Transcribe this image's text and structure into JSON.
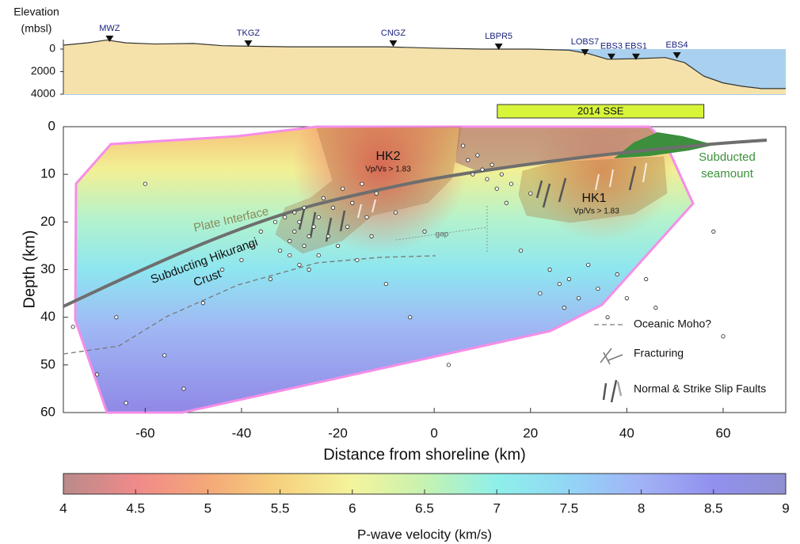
{
  "elevation_panel": {
    "axis_label": [
      "Elevation",
      "(mbsl)"
    ],
    "ylim": [
      -840,
      4000
    ],
    "yticks": [
      0,
      2000,
      4000
    ],
    "profile": {
      "x": [
        -77,
        -72,
        -68,
        -64,
        -58,
        -50,
        -44,
        -38,
        -30,
        -20,
        -10,
        0,
        10,
        20,
        28,
        32,
        36,
        42,
        48,
        52,
        56,
        60,
        64,
        68,
        73
      ],
      "elev": [
        -350,
        -550,
        -800,
        -550,
        -450,
        -500,
        -300,
        -250,
        -200,
        -200,
        -200,
        -80,
        0,
        0,
        100,
        400,
        900,
        850,
        750,
        1200,
        2400,
        3000,
        3300,
        3500,
        3500
      ]
    },
    "stations": [
      {
        "name": "MWZ",
        "x": -67.4,
        "elev": -700
      },
      {
        "name": "TKGZ",
        "x": -38.6,
        "elev": -280
      },
      {
        "name": "CNGZ",
        "x": -8.5,
        "elev": -280
      },
      {
        "name": "LBPR5",
        "x": 13.4,
        "elev": 0
      },
      {
        "name": "LOBS7",
        "x": 31.3,
        "elev": 500
      },
      {
        "name": "EBS3",
        "x": 36.8,
        "elev": 900
      },
      {
        "name": "EBS1",
        "x": 41.9,
        "elev": 900
      },
      {
        "name": "EBS4",
        "x": 50.4,
        "elev": 770
      }
    ],
    "sse": {
      "label": "2014 SSE",
      "x": [
        13.1,
        56
      ]
    }
  },
  "section": {
    "xlabel": "Distance from shoreline (km)",
    "ylabel": "Depth (km)",
    "xlim": [
      -77,
      73
    ],
    "ylim": [
      0,
      60
    ],
    "xticks": [
      -60,
      -40,
      -20,
      0,
      20,
      40,
      60
    ],
    "yticks": [
      0,
      10,
      20,
      30,
      40,
      50,
      60
    ],
    "annotations": {
      "hk2": "HK2",
      "hk2_ratio": "Vp/Vs > 1.83",
      "hk1": "HK1",
      "hk1_ratio": "Vp/Vs > 1.83",
      "seamount": [
        "Subducted",
        "seamount"
      ],
      "interface": "Plate Interface",
      "crust": [
        "Subducting Hikurangi",
        "Crust"
      ],
      "gap": "gap"
    },
    "legend": [
      "Oceanic Moho?",
      "Fracturing",
      "Normal & Strike Slip Faults"
    ],
    "earthquakes": [
      [
        -75,
        42
      ],
      [
        -70,
        52
      ],
      [
        -66,
        40
      ],
      [
        -64,
        58
      ],
      [
        -60,
        12
      ],
      [
        -56,
        48
      ],
      [
        -52,
        55
      ],
      [
        -48,
        37
      ],
      [
        -44,
        30
      ],
      [
        -40,
        28
      ],
      [
        -38,
        25
      ],
      [
        -36,
        22
      ],
      [
        -34,
        32
      ],
      [
        -33,
        20
      ],
      [
        -32,
        26
      ],
      [
        -31,
        19
      ],
      [
        -30,
        24
      ],
      [
        -30,
        27
      ],
      [
        -29,
        18
      ],
      [
        -29,
        22
      ],
      [
        -28,
        29
      ],
      [
        -28,
        20
      ],
      [
        -27,
        25
      ],
      [
        -27,
        17
      ],
      [
        -26,
        23
      ],
      [
        -26,
        30
      ],
      [
        -25,
        21
      ],
      [
        -24,
        19
      ],
      [
        -24,
        27
      ],
      [
        -23,
        15
      ],
      [
        -22,
        23
      ],
      [
        -21,
        17
      ],
      [
        -20,
        25
      ],
      [
        -19,
        13
      ],
      [
        -18,
        21
      ],
      [
        -17,
        16
      ],
      [
        -16,
        28
      ],
      [
        -15,
        12
      ],
      [
        -14,
        19
      ],
      [
        -13,
        23
      ],
      [
        -12,
        14
      ],
      [
        -10,
        33
      ],
      [
        -8,
        18
      ],
      [
        -5,
        40
      ],
      [
        -2,
        22
      ],
      [
        3,
        50
      ],
      [
        6,
        4
      ],
      [
        7,
        7
      ],
      [
        8,
        10
      ],
      [
        9,
        6
      ],
      [
        10,
        9
      ],
      [
        11,
        11
      ],
      [
        12,
        8
      ],
      [
        13,
        13
      ],
      [
        14,
        10
      ],
      [
        15,
        16
      ],
      [
        16,
        12
      ],
      [
        18,
        26
      ],
      [
        20,
        14
      ],
      [
        22,
        35
      ],
      [
        24,
        30
      ],
      [
        26,
        33
      ],
      [
        27,
        38
      ],
      [
        28,
        32
      ],
      [
        30,
        36
      ],
      [
        32,
        29
      ],
      [
        34,
        34
      ],
      [
        36,
        40
      ],
      [
        38,
        31
      ],
      [
        40,
        36
      ],
      [
        44,
        32
      ],
      [
        46,
        38
      ],
      [
        58,
        22
      ],
      [
        60,
        44
      ]
    ]
  },
  "colorbar": {
    "label": "P-wave velocity (km/s)",
    "lim": [
      4,
      9
    ],
    "ticks": [
      4,
      4.5,
      5,
      5.5,
      6,
      6.5,
      7,
      7.5,
      8,
      8.5,
      9
    ],
    "colors": [
      "#b98a8a",
      "#f08a8a",
      "#f4a878",
      "#f6d27e",
      "#f4f49c",
      "#c6f2b0",
      "#8ef0ea",
      "#92d6f6",
      "#a2b2f6",
      "#9290ee",
      "#8f8fd2"
    ]
  }
}
